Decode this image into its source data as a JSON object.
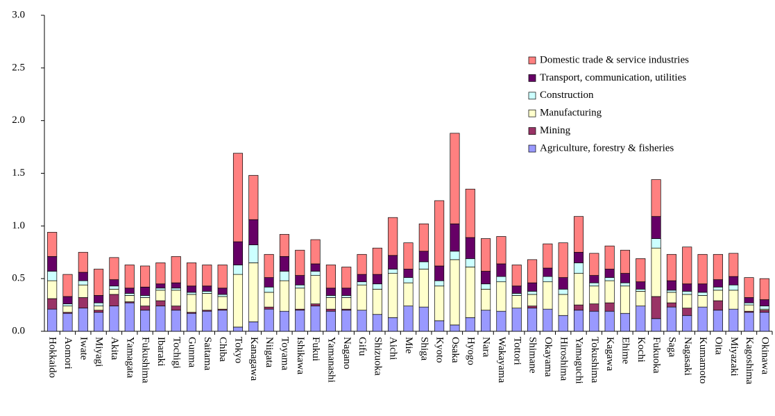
{
  "chart_data": {
    "type": "stacked-bar",
    "categories": [
      "Hokkaido",
      "Aomori",
      "Iwate",
      "Miyagi",
      "Akita",
      "Yamagata",
      "Fukushima",
      "Ibaraki",
      "Tochigi",
      "Gunma",
      "Saitama",
      "Chiba",
      "Tokyo",
      "Kanagawa",
      "Niigata",
      "Toyama",
      "Ishikawa",
      "Fukui",
      "Yamanashi",
      "Nagano",
      "Gifu",
      "Shizuoka",
      "Aichi",
      "Mie",
      "Shiga",
      "Kyoto",
      "Osaka",
      "Hyogo",
      "Nara",
      "Wakayama",
      "Tottori",
      "Shimane",
      "Okayama",
      "Hiroshima",
      "Yamaguchi",
      "Tokushima",
      "Kagawa",
      "Ehime",
      "Kochi",
      "Fukuoka",
      "Saga",
      "Nagasaki",
      "Kumamoto",
      "Oita",
      "Miyazaki",
      "Kagoshima",
      "Okinawa"
    ],
    "series": [
      {
        "name": "Agriculture, forestry & fisheries",
        "color": "#9999ff",
        "values": [
          0.21,
          0.17,
          0.22,
          0.18,
          0.24,
          0.27,
          0.2,
          0.24,
          0.2,
          0.17,
          0.19,
          0.2,
          0.04,
          0.09,
          0.21,
          0.19,
          0.2,
          0.24,
          0.19,
          0.2,
          0.2,
          0.16,
          0.13,
          0.24,
          0.23,
          0.1,
          0.06,
          0.13,
          0.2,
          0.19,
          0.22,
          0.22,
          0.21,
          0.15,
          0.2,
          0.19,
          0.19,
          0.17,
          0.24,
          0.12,
          0.23,
          0.15,
          0.23,
          0.2,
          0.21,
          0.18,
          0.18
        ]
      },
      {
        "name": "Mining",
        "color": "#993366",
        "values": [
          0.1,
          0.01,
          0.1,
          0.02,
          0.11,
          0.01,
          0.04,
          0.05,
          0.04,
          0.01,
          0.01,
          0.01,
          0.0,
          0.0,
          0.02,
          0.0,
          0.01,
          0.02,
          0.02,
          0.01,
          0.0,
          0.0,
          0.0,
          0.0,
          0.0,
          0.0,
          0.0,
          0.0,
          0.0,
          0.0,
          0.0,
          0.02,
          0.0,
          0.0,
          0.05,
          0.07,
          0.08,
          0.0,
          0.0,
          0.21,
          0.04,
          0.07,
          0.0,
          0.09,
          0.0,
          0.01,
          0.02
        ]
      },
      {
        "name": "Manufacturing",
        "color": "#ffffcc",
        "values": [
          0.17,
          0.06,
          0.12,
          0.04,
          0.05,
          0.06,
          0.08,
          0.1,
          0.15,
          0.17,
          0.16,
          0.12,
          0.5,
          0.56,
          0.14,
          0.29,
          0.2,
          0.27,
          0.11,
          0.11,
          0.24,
          0.24,
          0.42,
          0.22,
          0.36,
          0.33,
          0.62,
          0.48,
          0.2,
          0.28,
          0.12,
          0.11,
          0.26,
          0.2,
          0.3,
          0.17,
          0.21,
          0.26,
          0.14,
          0.46,
          0.1,
          0.13,
          0.11,
          0.1,
          0.18,
          0.06,
          0.01
        ]
      },
      {
        "name": "Construction",
        "color": "#ccffff",
        "values": [
          0.09,
          0.02,
          0.04,
          0.03,
          0.03,
          0.02,
          0.02,
          0.02,
          0.02,
          0.02,
          0.02,
          0.02,
          0.09,
          0.17,
          0.05,
          0.09,
          0.03,
          0.04,
          0.02,
          0.02,
          0.03,
          0.05,
          0.04,
          0.05,
          0.07,
          0.05,
          0.08,
          0.08,
          0.05,
          0.05,
          0.02,
          0.03,
          0.05,
          0.05,
          0.1,
          0.03,
          0.03,
          0.03,
          0.02,
          0.09,
          0.02,
          0.03,
          0.03,
          0.03,
          0.05,
          0.02,
          0.03
        ]
      },
      {
        "name": "Transport, communication, utilities",
        "color": "#660066",
        "values": [
          0.14,
          0.07,
          0.08,
          0.07,
          0.06,
          0.05,
          0.08,
          0.04,
          0.05,
          0.06,
          0.05,
          0.06,
          0.22,
          0.24,
          0.09,
          0.14,
          0.09,
          0.07,
          0.07,
          0.07,
          0.07,
          0.09,
          0.13,
          0.08,
          0.1,
          0.14,
          0.26,
          0.2,
          0.12,
          0.12,
          0.07,
          0.08,
          0.08,
          0.11,
          0.1,
          0.07,
          0.08,
          0.09,
          0.07,
          0.21,
          0.09,
          0.07,
          0.08,
          0.07,
          0.08,
          0.05,
          0.06
        ]
      },
      {
        "name": "Domestic trade & service industries",
        "color": "#ff8080",
        "values": [
          0.23,
          0.21,
          0.19,
          0.25,
          0.21,
          0.22,
          0.2,
          0.2,
          0.25,
          0.22,
          0.2,
          0.22,
          0.84,
          0.42,
          0.22,
          0.21,
          0.24,
          0.23,
          0.22,
          0.2,
          0.19,
          0.25,
          0.36,
          0.25,
          0.26,
          0.62,
          0.86,
          0.46,
          0.31,
          0.26,
          0.2,
          0.22,
          0.23,
          0.33,
          0.34,
          0.21,
          0.22,
          0.22,
          0.22,
          0.35,
          0.25,
          0.35,
          0.28,
          0.24,
          0.22,
          0.19,
          0.2
        ]
      }
    ],
    "ylim": [
      0,
      3
    ],
    "yticks": [
      {
        "value": 0,
        "label": "0.0"
      },
      {
        "value": 0.5,
        "label": "0.5"
      },
      {
        "value": 1,
        "label": "1.0"
      },
      {
        "value": 1.5,
        "label": "1.5"
      },
      {
        "value": 2,
        "label": "2.0"
      },
      {
        "value": 2.5,
        "label": "2.5"
      },
      {
        "value": 3,
        "label": "3.0"
      }
    ],
    "legend": "upper-right"
  }
}
